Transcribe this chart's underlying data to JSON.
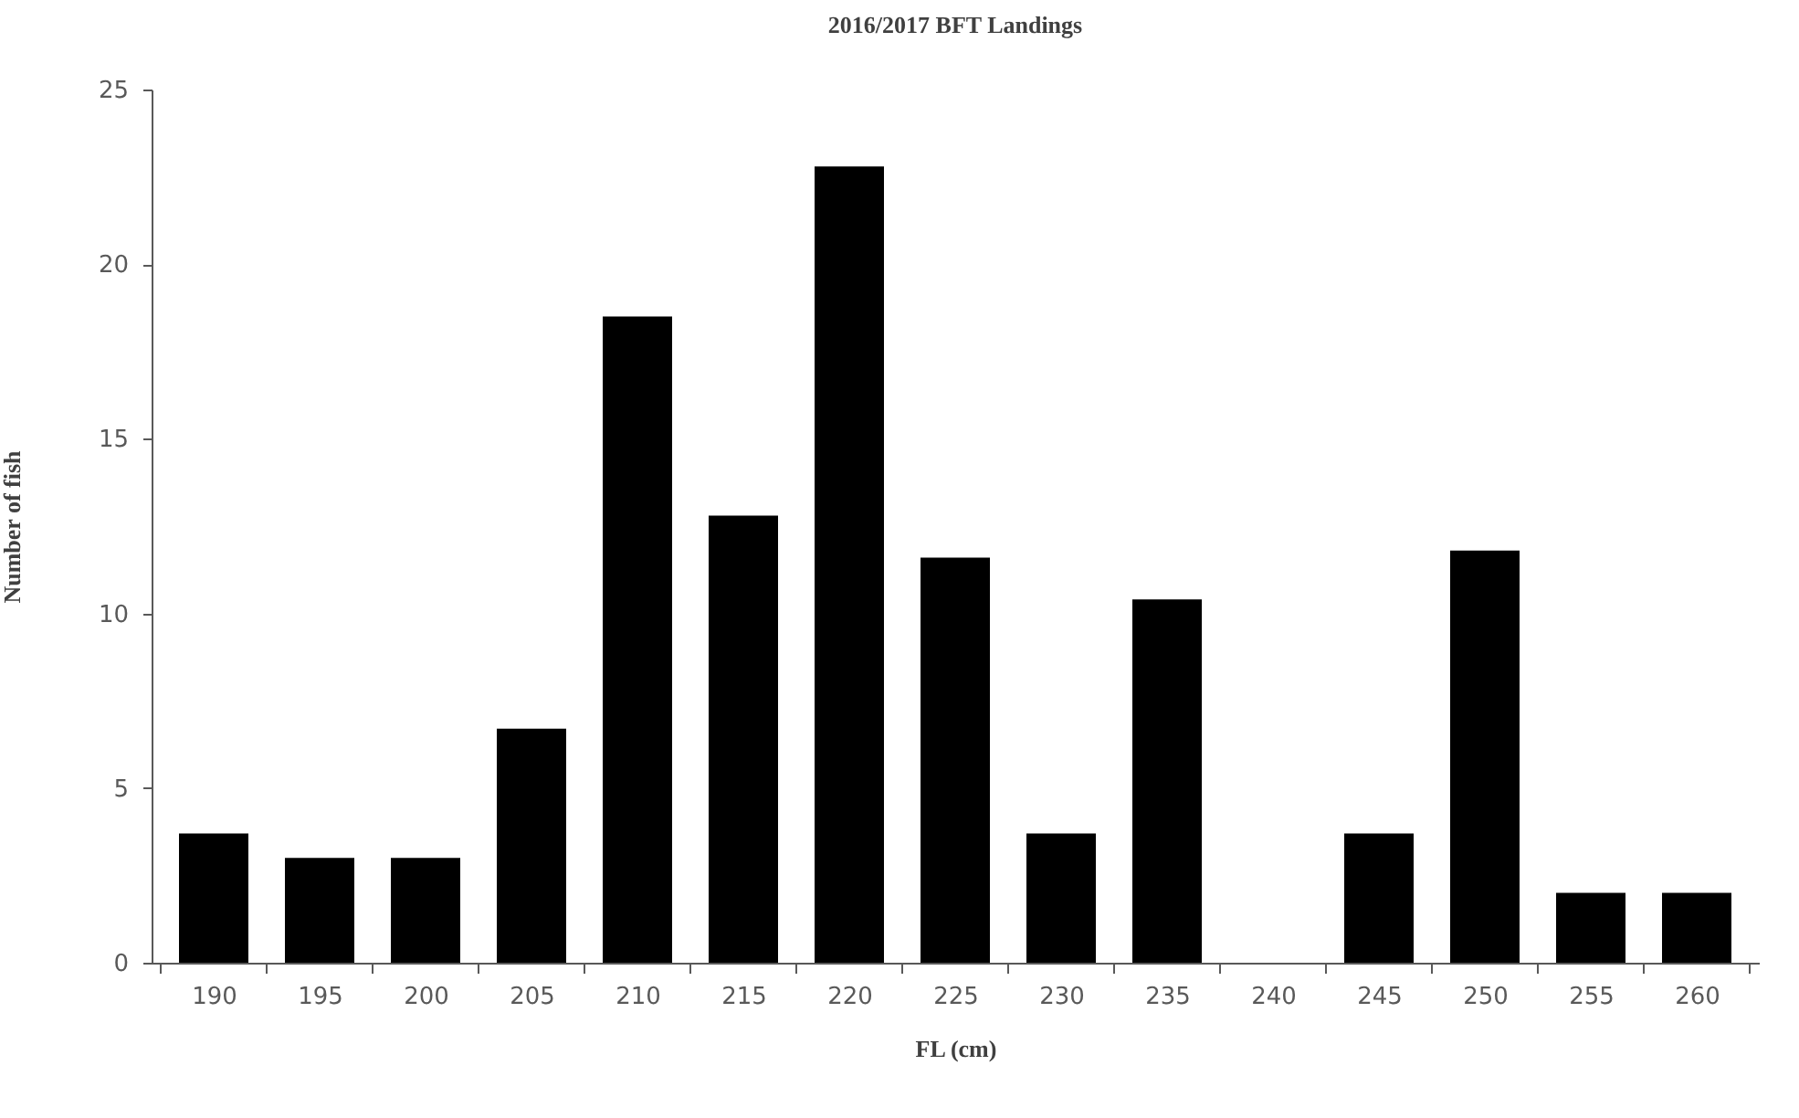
{
  "chart_data": {
    "type": "bar",
    "title": "2016/2017 BFT Landings",
    "xlabel": "FL (cm)",
    "ylabel": "Number  of fish",
    "categories": [
      "190",
      "195",
      "200",
      "205",
      "210",
      "215",
      "220",
      "225",
      "230",
      "235",
      "240",
      "245",
      "250",
      "255",
      "260"
    ],
    "values": [
      3.7,
      3.0,
      3.0,
      6.7,
      18.5,
      12.8,
      22.8,
      11.6,
      3.7,
      10.4,
      0,
      3.7,
      11.8,
      2.0,
      2.0
    ],
    "color": "#000000",
    "ylim": [
      0,
      25
    ],
    "yticks": [
      0,
      5,
      10,
      15,
      20,
      25
    ],
    "grid": false
  }
}
